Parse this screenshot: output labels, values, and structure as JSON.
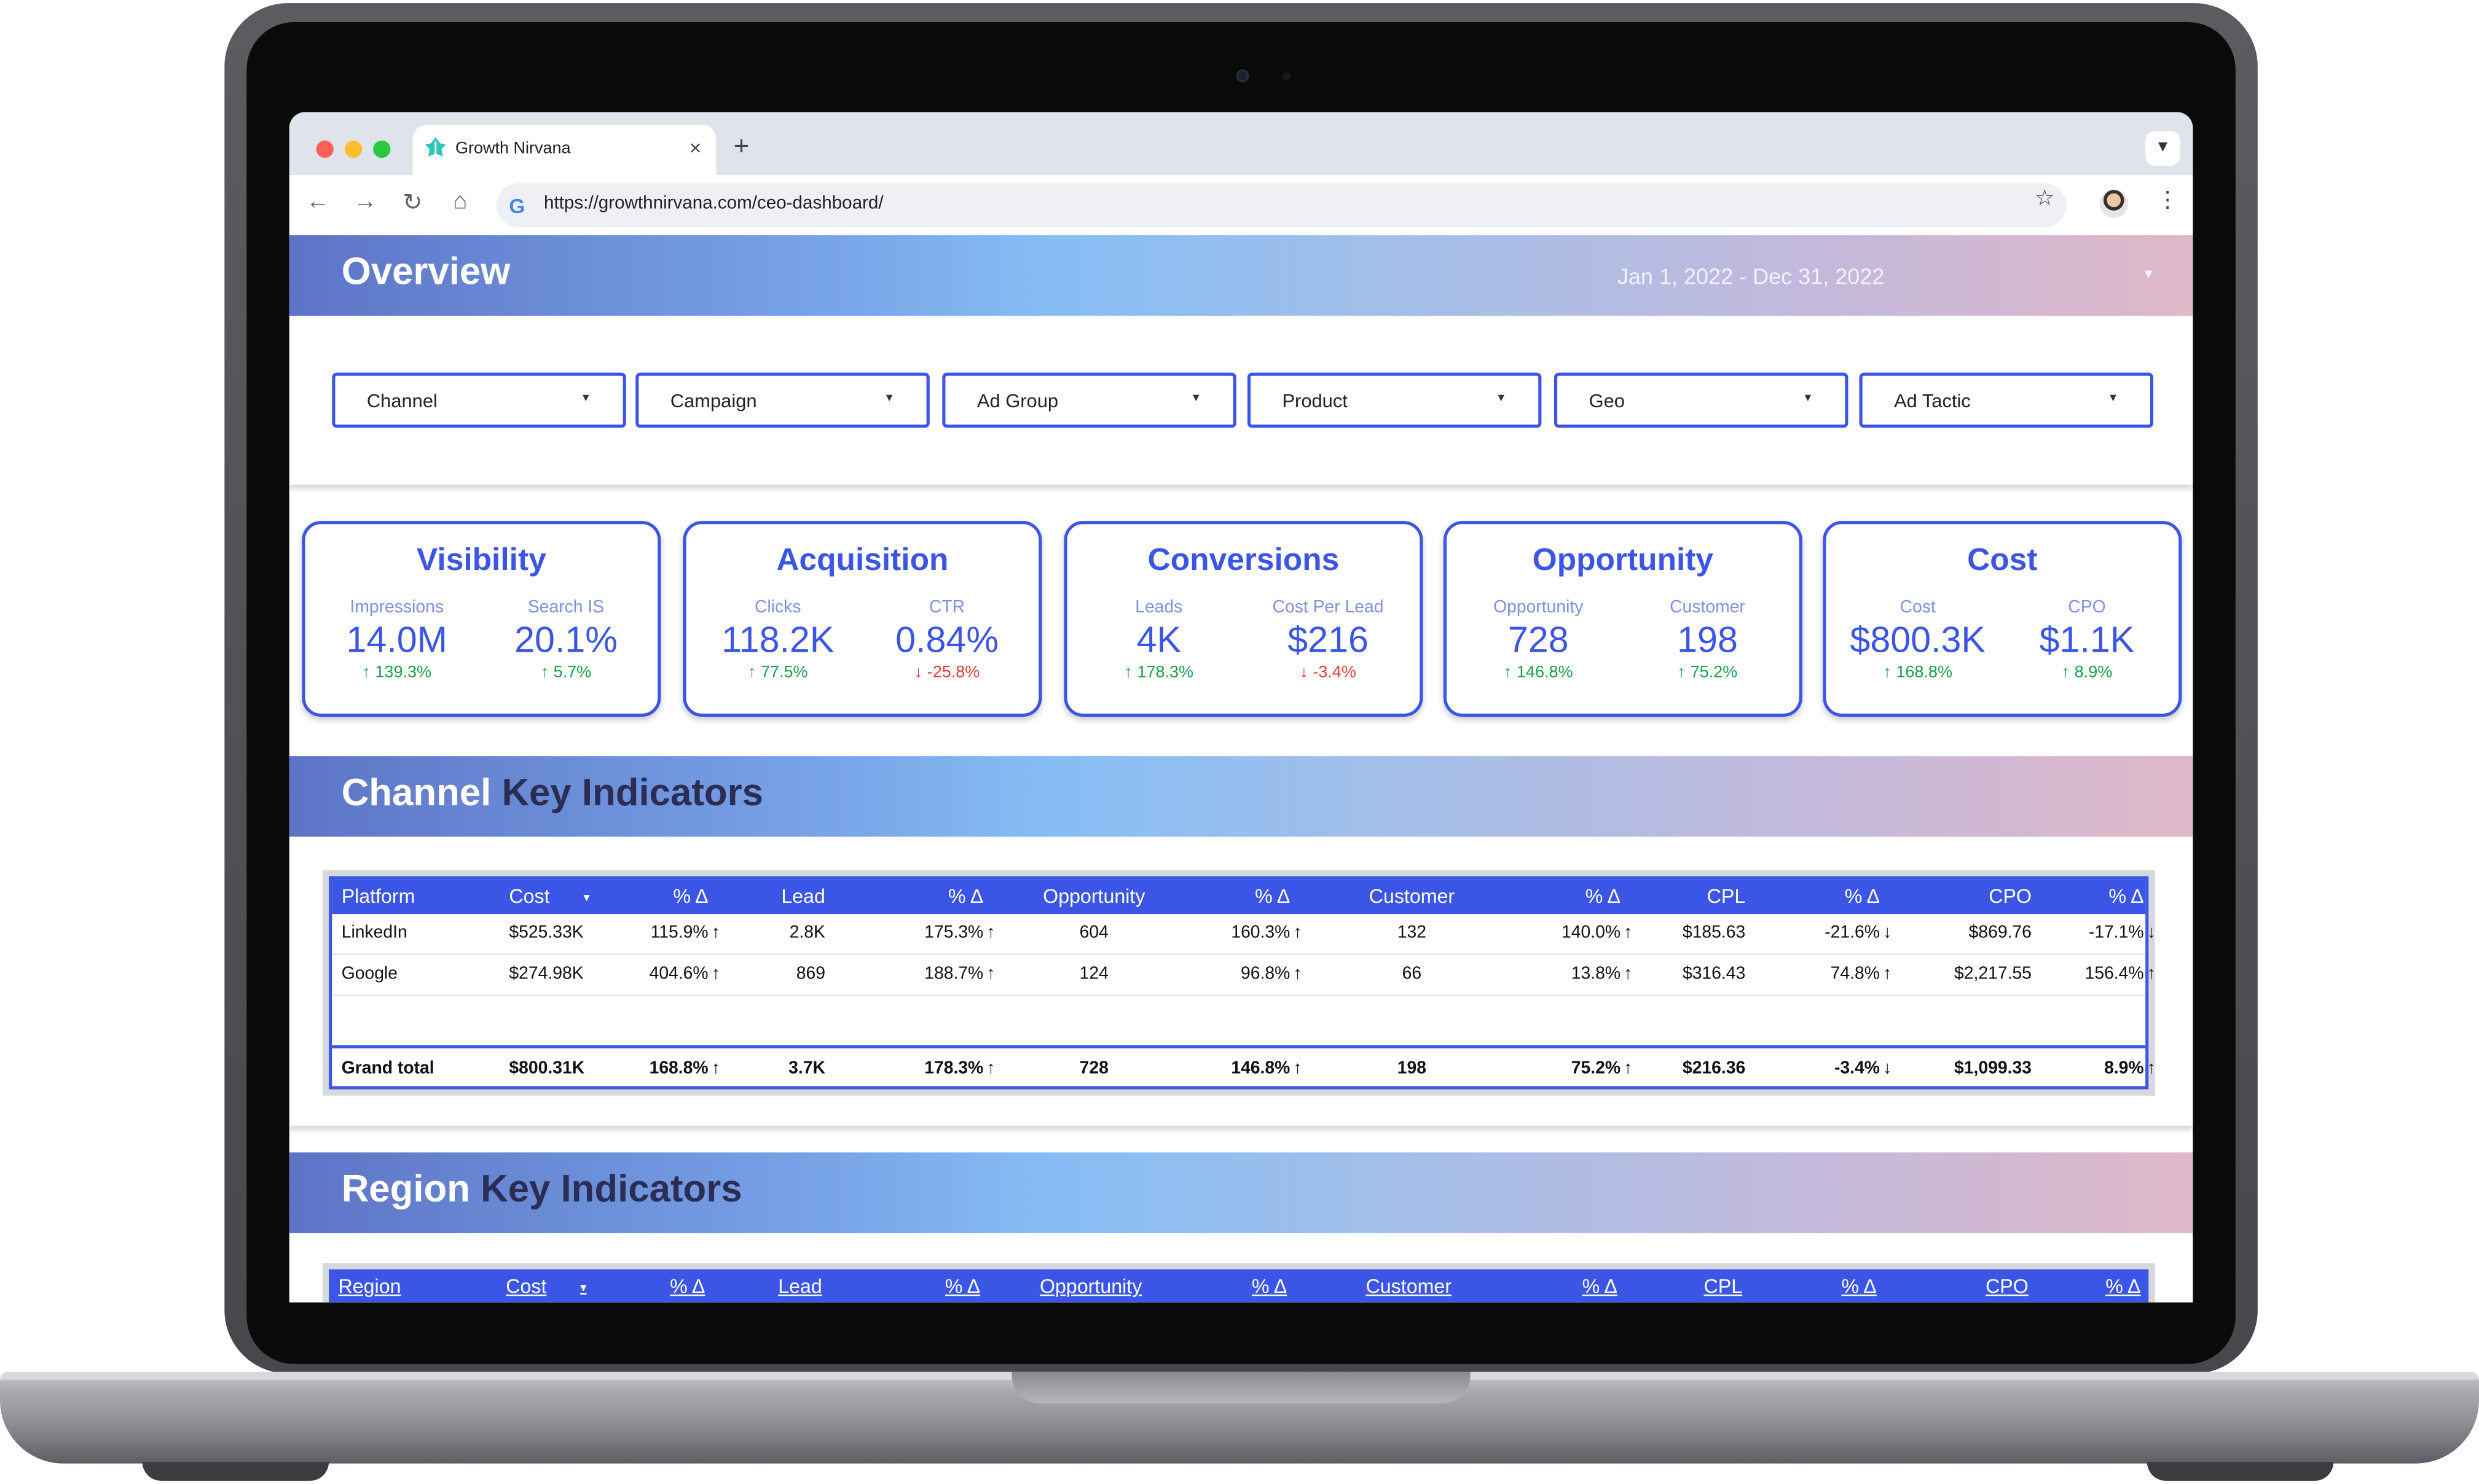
{
  "browser": {
    "tab_title": "Growth Nirvana",
    "url": "https://growthnirvana.com/ceo-dashboard/",
    "new_tab": "+",
    "tab_close": "×"
  },
  "overview": {
    "title": "Overview",
    "date_range": "Jan 1, 2022 - Dec 31, 2022"
  },
  "filters": [
    "Channel",
    "Campaign",
    "Ad Group",
    "Product",
    "Geo",
    "Ad Tactic"
  ],
  "kpi_cards": [
    {
      "title": "Visibility",
      "metrics": [
        {
          "label": "Impressions",
          "value": "14.0M",
          "delta": "139.3%",
          "dir": "up"
        },
        {
          "label": "Search IS",
          "value": "20.1%",
          "delta": "5.7%",
          "dir": "up"
        }
      ]
    },
    {
      "title": "Acquisition",
      "metrics": [
        {
          "label": "Clicks",
          "value": "118.2K",
          "delta": "77.5%",
          "dir": "up"
        },
        {
          "label": "CTR",
          "value": "0.84%",
          "delta": "-25.8%",
          "dir": "down"
        }
      ]
    },
    {
      "title": "Conversions",
      "metrics": [
        {
          "label": "Leads",
          "value": "4K",
          "delta": "178.3%",
          "dir": "up"
        },
        {
          "label": "Cost Per Lead",
          "value": "$216",
          "delta": "-3.4%",
          "dir": "down"
        }
      ]
    },
    {
      "title": "Opportunity",
      "metrics": [
        {
          "label": "Opportunity",
          "value": "728",
          "delta": "146.8%",
          "dir": "up"
        },
        {
          "label": "Customer",
          "value": "198",
          "delta": "75.2%",
          "dir": "up"
        }
      ]
    },
    {
      "title": "Cost",
      "metrics": [
        {
          "label": "Cost",
          "value": "$800.3K",
          "delta": "168.8%",
          "dir": "up"
        },
        {
          "label": "CPO",
          "value": "$1.1K",
          "delta": "8.9%",
          "dir": "up"
        }
      ]
    }
  ],
  "channel_section": {
    "title_main": "Channel",
    "title_rest": "Key Indicators",
    "columns": [
      "Platform",
      "Cost",
      "% Δ",
      "Lead",
      "% Δ",
      "Opportunity",
      "% Δ",
      "Customer",
      "% Δ",
      "CPL",
      "% Δ",
      "CPO",
      "% Δ"
    ],
    "sort_indicator": "▾",
    "rows": [
      {
        "cells": [
          "LinkedIn",
          "$525.33K",
          "115.9%",
          "2.8K",
          "175.3%",
          "604",
          "160.3%",
          "132",
          "140.0%",
          "$185.63",
          "-21.6%",
          "$869.76",
          "-17.1%"
        ],
        "dirs": [
          "up",
          "up",
          "up",
          "up",
          "down",
          "down"
        ]
      },
      {
        "cells": [
          "Google",
          "$274.98K",
          "404.6%",
          "869",
          "188.7%",
          "124",
          "96.8%",
          "66",
          "13.8%",
          "$316.43",
          "74.8%",
          "$2,217.55",
          "156.4%"
        ],
        "dirs": [
          "up",
          "up",
          "up",
          "up",
          "up",
          "up"
        ]
      }
    ],
    "total": {
      "cells": [
        "Grand total",
        "$800.31K",
        "168.8%",
        "3.7K",
        "178.3%",
        "728",
        "146.8%",
        "198",
        "75.2%",
        "$216.36",
        "-3.4%",
        "$1,099.33",
        "8.9%"
      ],
      "dirs": [
        "up",
        "up",
        "up",
        "up",
        "down",
        "up"
      ]
    }
  },
  "region_section": {
    "title_main": "Region",
    "title_rest": "Key Indicators",
    "columns": [
      "Region",
      "Cost",
      "% Δ",
      "Lead",
      "% Δ",
      "Opportunity",
      "% Δ",
      "Customer",
      "% Δ",
      "CPL",
      "% Δ",
      "CPO",
      "% Δ"
    ]
  },
  "colors": {
    "accent": "#3b55e6",
    "up": "#1a9e4a",
    "down": "#e03a3a"
  }
}
